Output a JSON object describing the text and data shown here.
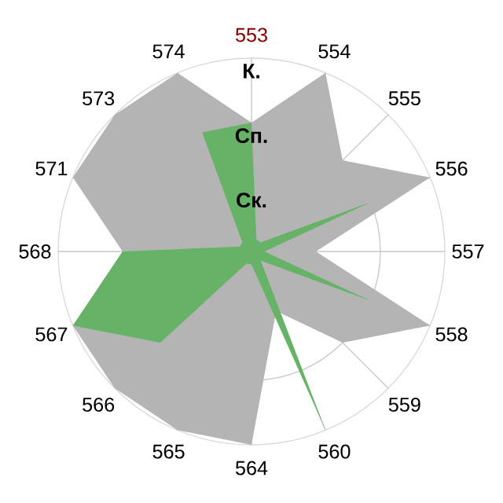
{
  "chart_data": {
    "type": "radar",
    "categories": [
      "553",
      "554",
      "555",
      "556",
      "557",
      "558",
      "559",
      "560",
      "564",
      "565",
      "566",
      "567",
      "568",
      "571",
      "573",
      "574"
    ],
    "ylim": [
      0,
      3
    ],
    "yticks": [
      {
        "value": 1,
        "label": "Ск."
      },
      {
        "value": 2,
        "label": "Сп."
      },
      {
        "value": 3,
        "label": "К."
      }
    ],
    "grid": true,
    "series": [
      {
        "color": "#b4b4b4",
        "values": [
          2,
          3,
          2,
          3,
          1,
          3,
          2,
          1,
          3,
          3,
          3,
          3,
          2,
          3,
          3,
          3
        ]
      },
      {
        "color": "#66b266",
        "values": [
          2,
          0.2,
          0.2,
          2,
          0.2,
          2,
          0.2,
          3,
          0.2,
          0.2,
          2,
          3,
          2,
          0.2,
          0.2,
          2
        ]
      }
    ]
  }
}
